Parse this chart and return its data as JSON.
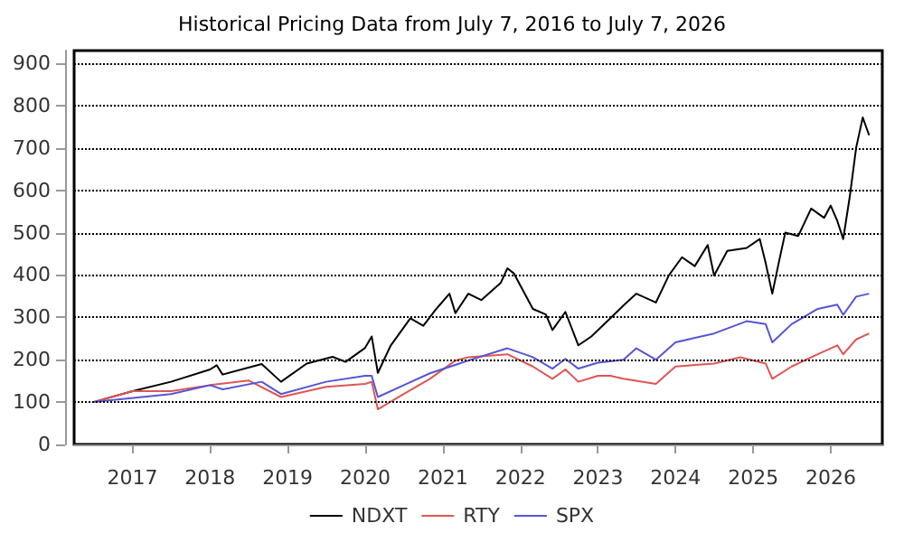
{
  "chart_data": {
    "type": "line",
    "title": "Historical Pricing Data from July 7, 2016 to July 7, 2026",
    "xlim": [
      "2016-04",
      "2026-09"
    ],
    "xticks": [
      "2017",
      "2018",
      "2019",
      "2020",
      "2021",
      "2022",
      "2023",
      "2024",
      "2025",
      "2026"
    ],
    "ylim": [
      0,
      930
    ],
    "yticks": [
      0,
      100,
      200,
      300,
      400,
      500,
      600,
      700,
      800,
      900
    ],
    "grid": "y",
    "legend": "bottom",
    "marker": "none",
    "line_style": "solid",
    "series": [
      {
        "name": "NDXT",
        "color": "#000000",
        "x": [
          "2016-07",
          "2017-01",
          "2017-07",
          "2018-01",
          "2018-02",
          "2018-03",
          "2018-09",
          "2018-12",
          "2019-04",
          "2019-08",
          "2019-10",
          "2020-01",
          "2020-02",
          "2020-03",
          "2020-05",
          "2020-08",
          "2020-10",
          "2020-12",
          "2021-02",
          "2021-03",
          "2021-05",
          "2021-07",
          "2021-10",
          "2021-11",
          "2021-12",
          "2022-03",
          "2022-05",
          "2022-06",
          "2022-08",
          "2022-10",
          "2022-12",
          "2023-03",
          "2023-05",
          "2023-07",
          "2023-10",
          "2023-12",
          "2024-02",
          "2024-04",
          "2024-06",
          "2024-07",
          "2024-09",
          "2024-12",
          "2025-02",
          "2025-03",
          "2025-04",
          "2025-05",
          "2025-06",
          "2025-08",
          "2025-10",
          "2025-12",
          "2026-01",
          "2026-02",
          "2026-03",
          "2026-04",
          "2026-05",
          "2026-06",
          "2026-07"
        ],
        "values": [
          100,
          126,
          148,
          177,
          187,
          165,
          190,
          148,
          191,
          207,
          195,
          228,
          255,
          169,
          234,
          298,
          280,
          320,
          356,
          310,
          356,
          341,
          382,
          416,
          404,
          320,
          307,
          270,
          313,
          234,
          255,
          298,
          328,
          356,
          335,
          399,
          442,
          421,
          471,
          399,
          457,
          464,
          485,
          428,
          356,
          428,
          500,
          492,
          557,
          535,
          564,
          528,
          485,
          586,
          701,
          772,
          730
        ]
      },
      {
        "name": "RTY",
        "color": "#e05555",
        "x": [
          "2016-07",
          "2017-01",
          "2017-07",
          "2018-01",
          "2018-07",
          "2018-12",
          "2019-07",
          "2020-01",
          "2020-02",
          "2020-03",
          "2020-07",
          "2020-11",
          "2021-03",
          "2021-05",
          "2021-11",
          "2022-03",
          "2022-06",
          "2022-08",
          "2022-10",
          "2023-01",
          "2023-03",
          "2023-05",
          "2023-10",
          "2024-01",
          "2024-07",
          "2024-11",
          "2025-03",
          "2025-04",
          "2025-07",
          "2025-11",
          "2026-02",
          "2026-03",
          "2026-05",
          "2026-07"
        ],
        "values": [
          100,
          126,
          126,
          140,
          151,
          112,
          136,
          143,
          148,
          83,
          119,
          155,
          198,
          206,
          213,
          184,
          155,
          177,
          148,
          162,
          162,
          155,
          143,
          184,
          191,
          206,
          191,
          155,
          184,
          213,
          234,
          213,
          248,
          262
        ]
      },
      {
        "name": "SPX",
        "color": "#5555d5",
        "x": [
          "2016-07",
          "2017-07",
          "2018-01",
          "2018-03",
          "2018-09",
          "2018-12",
          "2019-07",
          "2020-01",
          "2020-02",
          "2020-03",
          "2020-07",
          "2020-11",
          "2021-05",
          "2021-11",
          "2022-03",
          "2022-06",
          "2022-08",
          "2022-10",
          "2023-01",
          "2023-05",
          "2023-07",
          "2023-10",
          "2024-01",
          "2024-07",
          "2024-12",
          "2025-03",
          "2025-04",
          "2025-07",
          "2025-11",
          "2026-02",
          "2026-03",
          "2026-05",
          "2026-07"
        ],
        "values": [
          100,
          119,
          140,
          130,
          148,
          119,
          148,
          162,
          162,
          112,
          140,
          168,
          198,
          227,
          206,
          179,
          202,
          179,
          193,
          200,
          227,
          200,
          241,
          262,
          291,
          284,
          241,
          284,
          320,
          330,
          306,
          349,
          356
        ]
      }
    ]
  }
}
